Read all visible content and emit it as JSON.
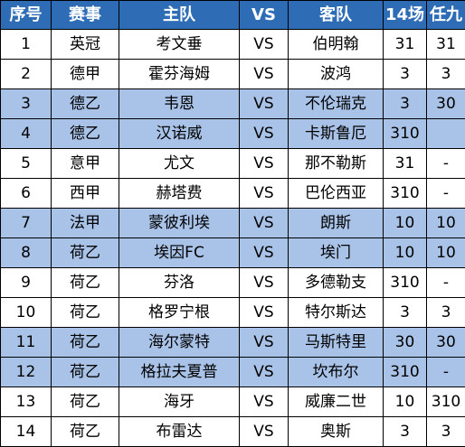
{
  "colors": {
    "header_bg": "#2e6cb5",
    "header_text": "#ffffff",
    "highlight_row": "#a9c3e8",
    "plain_row": "#ffffff",
    "border": "#000000"
  },
  "headers": [
    "序号",
    "赛事",
    "主队",
    "VS",
    "客队",
    "14场",
    "任九"
  ],
  "rows": [
    {
      "no": "1",
      "league": "英冠",
      "home": "考文垂",
      "vs": "VS",
      "away": "伯明翰",
      "p14": "31",
      "r9": "31",
      "highlight": false
    },
    {
      "no": "2",
      "league": "德甲",
      "home": "霍芬海姆",
      "vs": "VS",
      "away": "波鸿",
      "p14": "3",
      "r9": "3",
      "highlight": false
    },
    {
      "no": "3",
      "league": "德乙",
      "home": "韦恩",
      "vs": "VS",
      "away": "不伦瑞克",
      "p14": "3",
      "r9": "30",
      "highlight": true
    },
    {
      "no": "4",
      "league": "德乙",
      "home": "汉诺威",
      "vs": "VS",
      "away": "卡斯鲁厄",
      "p14": "310",
      "r9": "",
      "highlight": true
    },
    {
      "no": "5",
      "league": "意甲",
      "home": "尤文",
      "vs": "VS",
      "away": "那不勒斯",
      "p14": "31",
      "r9": "-",
      "highlight": false
    },
    {
      "no": "6",
      "league": "西甲",
      "home": "赫塔费",
      "vs": "VS",
      "away": "巴伦西亚",
      "p14": "310",
      "r9": "-",
      "highlight": false
    },
    {
      "no": "7",
      "league": "法甲",
      "home": "蒙彼利埃",
      "vs": "VS",
      "away": "朗斯",
      "p14": "10",
      "r9": "10",
      "highlight": true
    },
    {
      "no": "8",
      "league": "荷乙",
      "home": "埃因FC",
      "vs": "VS",
      "away": "埃门",
      "p14": "10",
      "r9": "10",
      "highlight": true
    },
    {
      "no": "9",
      "league": "荷乙",
      "home": "芬洛",
      "vs": "VS",
      "away": "多德勒支",
      "p14": "310",
      "r9": "-",
      "highlight": false
    },
    {
      "no": "10",
      "league": "荷乙",
      "home": "格罗宁根",
      "vs": "VS",
      "away": "特尔斯达",
      "p14": "3",
      "r9": "3",
      "highlight": false
    },
    {
      "no": "11",
      "league": "荷乙",
      "home": "海尔蒙特",
      "vs": "VS",
      "away": "马斯特里",
      "p14": "30",
      "r9": "30",
      "highlight": true
    },
    {
      "no": "12",
      "league": "荷乙",
      "home": "格拉夫夏普",
      "vs": "VS",
      "away": "坎布尔",
      "p14": "310",
      "r9": "-",
      "highlight": true
    },
    {
      "no": "13",
      "league": "荷乙",
      "home": "海牙",
      "vs": "VS",
      "away": "威廉二世",
      "p14": "10",
      "r9": "310",
      "highlight": false
    },
    {
      "no": "14",
      "league": "荷乙",
      "home": "布雷达",
      "vs": "VS",
      "away": "奥斯",
      "p14": "3",
      "r9": "3",
      "highlight": false
    }
  ]
}
